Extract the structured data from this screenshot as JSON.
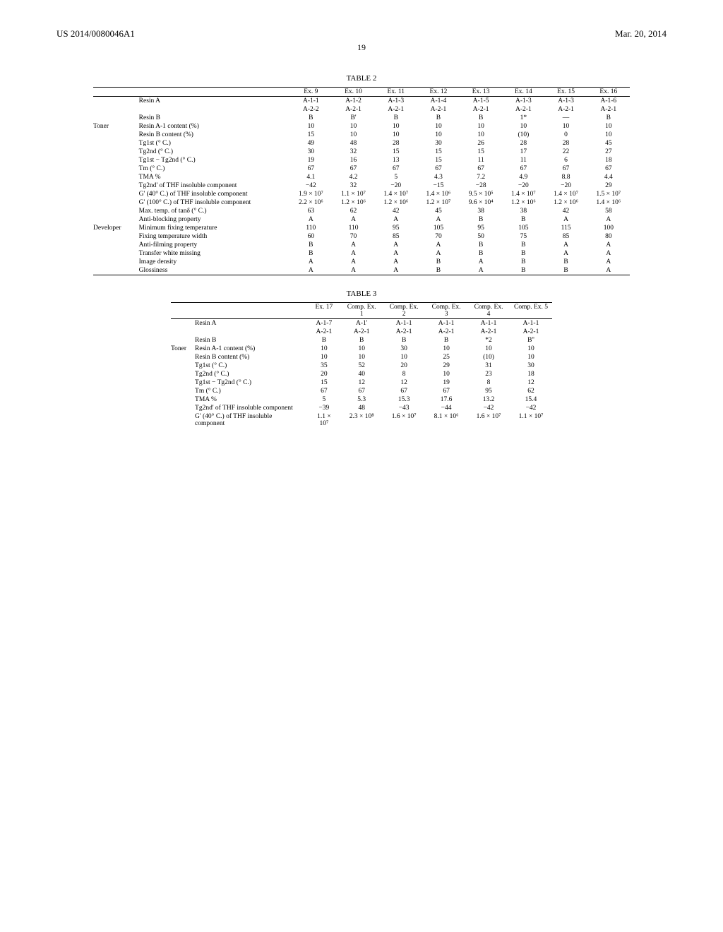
{
  "header": {
    "left": "US 2014/0080046A1",
    "right": "Mar. 20, 2014"
  },
  "page_number": "19",
  "table2": {
    "title": "TABLE 2",
    "col_headers": [
      "Ex. 9",
      "Ex. 10",
      "Ex. 11",
      "Ex. 12",
      "Ex. 13",
      "Ex. 14",
      "Ex. 15",
      "Ex. 16"
    ],
    "resinA_row1": [
      "A-1-1",
      "A-1-2",
      "A-1-3",
      "A-1-4",
      "A-1-5",
      "A-1-3",
      "A-1-3",
      "A-1-6"
    ],
    "resinA_row2": [
      "A-2-2",
      "A-2-1",
      "A-2-1",
      "A-2-1",
      "A-2-1",
      "A-2-1",
      "A-2-1",
      "A-2-1"
    ],
    "resinB": [
      "B",
      "B'",
      "B",
      "B",
      "B",
      "1*",
      "—",
      "B"
    ],
    "toner_label": "Toner",
    "developer_label": "Developer",
    "rows": [
      {
        "g": "Toner",
        "l": "Resin A-1 content (%)",
        "v": [
          "10",
          "10",
          "10",
          "10",
          "10",
          "10",
          "10",
          "10"
        ]
      },
      {
        "g": "",
        "l": "Resin B content (%)",
        "v": [
          "15",
          "10",
          "10",
          "10",
          "10",
          "(10)",
          "0",
          "10"
        ]
      },
      {
        "g": "",
        "l": "Tg1st (° C.)",
        "v": [
          "49",
          "48",
          "28",
          "30",
          "26",
          "28",
          "28",
          "45"
        ]
      },
      {
        "g": "",
        "l": "Tg2nd (° C.)",
        "v": [
          "30",
          "32",
          "15",
          "15",
          "15",
          "17",
          "22",
          "27"
        ]
      },
      {
        "g": "",
        "l": "Tg1st − Tg2nd (° C.)",
        "v": [
          "19",
          "16",
          "13",
          "15",
          "11",
          "11",
          "6",
          "18"
        ]
      },
      {
        "g": "",
        "l": "Tm (° C.)",
        "v": [
          "67",
          "67",
          "67",
          "67",
          "67",
          "67",
          "67",
          "67"
        ]
      },
      {
        "g": "",
        "l": "TMA %",
        "v": [
          "4.1",
          "4.2",
          "5",
          "4.3",
          "7.2",
          "4.9",
          "8.8",
          "4.4"
        ]
      },
      {
        "g": "",
        "l": "Tg2nd' of THF insoluble component",
        "v": [
          "−42",
          "32",
          "−20",
          "−15",
          "−28",
          "−20",
          "−20",
          "29"
        ]
      },
      {
        "g": "",
        "l": "G' (40° C.) of THF insoluble component",
        "v": [
          "1.9 × 10⁷",
          "1.1 × 10⁷",
          "1.4 × 10⁷",
          "1.4 × 10⁶",
          "9.5 × 10⁵",
          "1.4 × 10⁷",
          "1.4 × 10⁷",
          "1.5 × 10⁷"
        ]
      },
      {
        "g": "",
        "l": "G' (100° C.) of THF insoluble component",
        "v": [
          "2.2 × 10⁶",
          "1.2 × 10⁶",
          "1.2 × 10⁶",
          "1.2 × 10⁷",
          "9.6 × 10⁴",
          "1.2 × 10⁶",
          "1.2 × 10⁶",
          "1.4 × 10⁶"
        ]
      },
      {
        "g": "",
        "l": "Max. temp. of tanδ (° C.)",
        "v": [
          "63",
          "62",
          "42",
          "45",
          "38",
          "38",
          "42",
          "58"
        ]
      },
      {
        "g": "",
        "l": "Anti-blocking property",
        "v": [
          "A",
          "A",
          "A",
          "A",
          "B",
          "B",
          "A",
          "A"
        ]
      },
      {
        "g": "Developer",
        "l": "Minimum fixing temperature",
        "v": [
          "110",
          "110",
          "95",
          "105",
          "95",
          "105",
          "115",
          "100"
        ]
      },
      {
        "g": "",
        "l": "Fixing temperature width",
        "v": [
          "60",
          "70",
          "85",
          "70",
          "50",
          "75",
          "85",
          "80"
        ]
      },
      {
        "g": "",
        "l": "Anti-filming property",
        "v": [
          "B",
          "A",
          "A",
          "A",
          "B",
          "B",
          "A",
          "A"
        ]
      },
      {
        "g": "",
        "l": "Transfer white missing",
        "v": [
          "B",
          "A",
          "A",
          "A",
          "B",
          "B",
          "A",
          "A"
        ]
      },
      {
        "g": "",
        "l": "Image density",
        "v": [
          "A",
          "A",
          "A",
          "B",
          "A",
          "B",
          "B",
          "A"
        ]
      },
      {
        "g": "",
        "l": "Glossiness",
        "v": [
          "A",
          "A",
          "A",
          "B",
          "A",
          "B",
          "B",
          "A"
        ]
      }
    ]
  },
  "table3": {
    "title": "TABLE 3",
    "col_headers": [
      "Ex. 17",
      "Comp. Ex. 1",
      "Comp. Ex. 2",
      "Comp. Ex. 3",
      "Comp. Ex. 4",
      "Comp. Ex. 5"
    ],
    "resinA_row1": [
      "A-1-7",
      "A-1'",
      "A-1-1",
      "A-1-1",
      "A-1-1",
      "A-1-1"
    ],
    "resinA_row2": [
      "A-2-1",
      "A-2-1",
      "A-2-1",
      "A-2-1",
      "A-2-1",
      "A-2-1"
    ],
    "resinB": [
      "B",
      "B",
      "B",
      "B",
      "*2",
      "B''"
    ],
    "toner_label": "Toner",
    "rows": [
      {
        "g": "Toner",
        "l": "Resin A-1 content (%)",
        "v": [
          "10",
          "10",
          "30",
          "10",
          "10",
          "10"
        ]
      },
      {
        "g": "",
        "l": "Resin B content (%)",
        "v": [
          "10",
          "10",
          "10",
          "25",
          "(10)",
          "10"
        ]
      },
      {
        "g": "",
        "l": "Tg1st (° C.)",
        "v": [
          "35",
          "52",
          "20",
          "29",
          "31",
          "30"
        ]
      },
      {
        "g": "",
        "l": "Tg2nd (° C.)",
        "v": [
          "20",
          "40",
          "8",
          "10",
          "23",
          "18"
        ]
      },
      {
        "g": "",
        "l": "Tg1st − Tg2nd (° C.)",
        "v": [
          "15",
          "12",
          "12",
          "19",
          "8",
          "12"
        ]
      },
      {
        "g": "",
        "l": "Tm (° C.)",
        "v": [
          "67",
          "67",
          "67",
          "67",
          "95",
          "62"
        ]
      },
      {
        "g": "",
        "l": "TMA %",
        "v": [
          "5",
          "5.3",
          "15.3",
          "17.6",
          "13.2",
          "15.4"
        ]
      },
      {
        "g": "",
        "l": "Tg2nd' of THF insoluble component",
        "v": [
          "−39",
          "48",
          "−43",
          "−44",
          "−42",
          "−42"
        ]
      },
      {
        "g": "",
        "l": "G' (40° C.) of THF insoluble component",
        "v": [
          "1.1 × 10⁷",
          "2.3 × 10⁸",
          "1.6 × 10⁷",
          "8.1 × 10⁶",
          "1.6 × 10⁷",
          "1.1 × 10⁷"
        ]
      }
    ]
  },
  "labels": {
    "resinA": "Resin A",
    "resinB": "Resin B"
  }
}
